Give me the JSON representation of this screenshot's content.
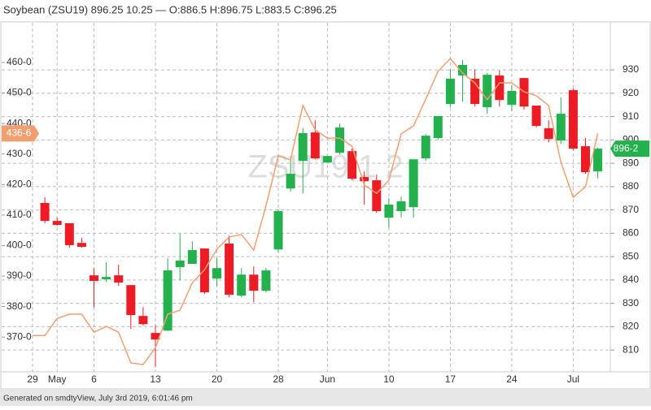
{
  "chart_data": {
    "type": "candlestick",
    "title": "Soybean (ZSU19) 896.25 10.25 — O:886.5 H:896.75 L:883.5 C:896.25",
    "watermark": "ZSU19,1 2",
    "footer": "Generated on smdtyView, July 3rd 2019, 6:01:46 pm",
    "categories": [
      "29",
      null,
      "May",
      null,
      null,
      "6",
      null,
      null,
      null,
      null,
      "13",
      null,
      null,
      null,
      null,
      "20",
      null,
      null,
      null,
      null,
      "28",
      null,
      null,
      null,
      "Jun",
      null,
      null,
      null,
      null,
      "10",
      null,
      null,
      null,
      null,
      "17",
      null,
      null,
      null,
      null,
      "24",
      null,
      null,
      null,
      null,
      "Jul",
      null,
      null
    ],
    "series": [
      {
        "name": "ZSU19",
        "axis": "y2",
        "up_color": "#22b14c",
        "down_color": "#ed1c24",
        "open": [
          null,
          873.0,
          865.3,
          864.3,
          855.9,
          842.0,
          840.3,
          842.0,
          837.8,
          824.6,
          817.3,
          818.3,
          845.5,
          846.9,
          853.5,
          840.6,
          855.6,
          833.3,
          842.3,
          835.4,
          853.1,
          879.2,
          891.0,
          903.2,
          890.3,
          894.5,
          895.2,
          884.1,
          882.7,
          866.7,
          869.5,
          871.2,
          892.1,
          900.8,
          915.4,
          927.6,
          926.2,
          914.0,
          927.6,
          915.0,
          926.5,
          914.7,
          905.0,
          899.7,
          921.3,
          897.3,
          886.5
        ],
        "high": [
          null,
          875.4,
          866.7,
          864.3,
          858.0,
          845.1,
          847.6,
          846.5,
          837.8,
          828.4,
          820.7,
          849.3,
          859.7,
          856.6,
          853.5,
          849.3,
          859.0,
          845.1,
          845.8,
          845.1,
          870.2,
          892.8,
          905.0,
          908.4,
          893.1,
          907.0,
          896.3,
          886.5,
          885.1,
          875.0,
          875.7,
          891.7,
          902.5,
          910.2,
          930.3,
          934.2,
          930.3,
          928.6,
          929.7,
          923.4,
          926.5,
          914.7,
          908.4,
          918.2,
          922.0,
          900.8,
          896.75
        ],
        "low": [
          null,
          864.3,
          863.2,
          853.8,
          853.8,
          828.4,
          839.2,
          837.5,
          819.0,
          820.4,
          802.7,
          818.3,
          839.9,
          846.9,
          834.0,
          837.5,
          832.6,
          832.6,
          830.5,
          834.7,
          851.7,
          877.8,
          877.1,
          891.7,
          890.3,
          893.8,
          882.7,
          872.3,
          868.8,
          862.5,
          866.7,
          866.7,
          891.0,
          900.1,
          914.0,
          916.4,
          914.3,
          911.2,
          914.3,
          912.3,
          913.0,
          905.3,
          899.0,
          898.3,
          895.6,
          885.5,
          883.5
        ],
        "close": [
          null,
          865.3,
          863.6,
          854.9,
          854.2,
          839.6,
          841.3,
          838.9,
          825.0,
          821.1,
          814.5,
          844.1,
          848.3,
          852.8,
          834.7,
          845.1,
          833.7,
          842.3,
          835.4,
          844.1,
          869.5,
          885.5,
          902.9,
          892.1,
          893.1,
          905.3,
          883.4,
          882.3,
          869.5,
          872.3,
          873.7,
          891.7,
          901.8,
          910.2,
          926.2,
          932.1,
          915.4,
          927.9,
          917.1,
          921.0,
          914.3,
          906.0,
          900.4,
          911.2,
          896.3,
          886.2,
          896.25
        ],
        "last": {
          "value": 896.25,
          "label": "896-2"
        }
      },
      {
        "type": "line",
        "axis": "y",
        "color": "#f0a070",
        "values": [
          370.5,
          370.5,
          376.1,
          377.5,
          377.5,
          371.6,
          373.5,
          371.6,
          361.5,
          361.0,
          366.5,
          377.5,
          378.8,
          387.8,
          392.1,
          398.8,
          402.8,
          403.6,
          398.5,
          413.1,
          429.4,
          428.1,
          445.9,
          437.9,
          435.2,
          435.2,
          432.6,
          419.8,
          417.1,
          421.4,
          436.6,
          439.2,
          448.0,
          457.1,
          461.3,
          456.5,
          453.3,
          447.8,
          453.3,
          453.3,
          450.4,
          449.1,
          445.9,
          427.3,
          415.8,
          419.3,
          436.75
        ],
        "last": {
          "value": 436.75,
          "label": "436-6"
        }
      }
    ],
    "ylim": [
      359.4,
      472.5
    ],
    "yticks": [
      {
        "value": 460,
        "label": "460-0"
      },
      {
        "value": 450,
        "label": "450-0"
      },
      {
        "value": 440,
        "label": "440-0"
      },
      {
        "value": 430,
        "label": "430-0"
      },
      {
        "value": 420,
        "label": "420-0"
      },
      {
        "value": 410,
        "label": "410-0"
      },
      {
        "value": 400,
        "label": "400-0"
      },
      {
        "value": 390,
        "label": "390-0"
      },
      {
        "value": 380,
        "label": "380-0"
      },
      {
        "value": 370,
        "label": "370-0"
      }
    ],
    "y2lim": [
      801.7,
      949.5
    ],
    "y2ticks": [
      810,
      820,
      830,
      840,
      850,
      860,
      870,
      880,
      890,
      900,
      910,
      920,
      930
    ],
    "grid": true
  }
}
